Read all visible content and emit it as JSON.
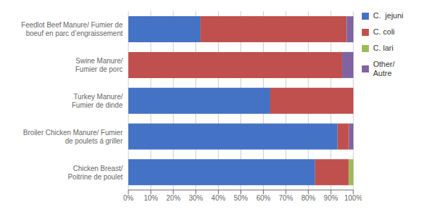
{
  "chart_data": {
    "type": "bar",
    "orientation": "horizontal",
    "stacked": true,
    "categories": [
      "Feedlot Beef Manure/ Fumier de\nboeuf en parc d’engraissement",
      "Swine Manure/\nFumier de porc",
      "Turkey Manure/\nFumier de dinde",
      "Broiler Chicken Manure/ Fumier\nde poulets á griller",
      "Chicken Breast/\nPoitrine de poulet"
    ],
    "series": [
      {
        "name": "C.  jejuni",
        "color": "#4472C4",
        "values": [
          32,
          0,
          63,
          93,
          83
        ]
      },
      {
        "name": "C. coli",
        "color": "#C0504D",
        "values": [
          65,
          95,
          37,
          5,
          15
        ]
      },
      {
        "name": "C. lari",
        "color": "#9BBB59",
        "values": [
          0,
          0,
          0,
          0,
          2
        ]
      },
      {
        "name": "Other/\nAutre",
        "color": "#8064A2",
        "values": [
          3,
          5,
          0,
          2,
          0
        ]
      }
    ],
    "xlim": [
      0,
      100
    ],
    "xticks": [
      {
        "value": 0,
        "label": "0%"
      },
      {
        "value": 10,
        "label": "10%"
      },
      {
        "value": 20,
        "label": "20%"
      },
      {
        "value": 30,
        "label": "30%"
      },
      {
        "value": 40,
        "label": "40%"
      },
      {
        "value": 50,
        "label": "50%"
      },
      {
        "value": 60,
        "label": "60%"
      },
      {
        "value": 70,
        "label": "70%"
      },
      {
        "value": 80,
        "label": "80%"
      },
      {
        "value": 90,
        "label": "90%"
      },
      {
        "value": 100,
        "label": "100%"
      }
    ],
    "grid": true,
    "legend": "right"
  }
}
